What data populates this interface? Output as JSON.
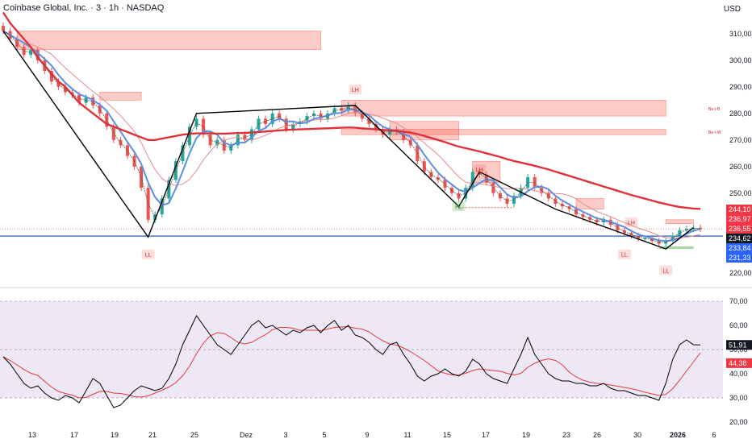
{
  "header": {
    "title": "Coinbase Global, Inc. · 3 · 1h · NASDAQ",
    "currency": "USD"
  },
  "colors": {
    "up": "#26a69a",
    "down": "#ef5350",
    "ema_slow": "#e0303a",
    "ema_mid": "#e58a8e",
    "ema_fast": "#5b8fe0",
    "zigzag": "#000000",
    "support": "#2a5fb0",
    "rsi": "#000000",
    "rsi_ma": "#e23b3b",
    "band_fill": "#ede7f6",
    "green_ema": "#4caf50"
  },
  "chart_data": [
    {
      "type": "candlestick",
      "y_ticks": [
        "310,00",
        "300,00",
        "290,00",
        "280,00",
        "270,00",
        "260,00",
        "250,00",
        "240,00",
        "220,00"
      ],
      "ylim": [
        216,
        316
      ],
      "x_ticks": [
        "13",
        "17",
        "19",
        "21",
        "25",
        "Dez",
        "3",
        "5",
        "9",
        "11",
        "15",
        "17",
        "19",
        "23",
        "26",
        "30",
        "2026",
        "6"
      ],
      "price_labels": [
        {
          "text": "244,10",
          "kind": "red"
        },
        {
          "text": "236,97",
          "kind": "red"
        },
        {
          "text": "236,55",
          "kind": "red"
        },
        {
          "text": "234,62",
          "kind": "black"
        },
        {
          "text": "233,84",
          "kind": "blue"
        },
        {
          "text": "231,33",
          "kind": "blue"
        }
      ],
      "swing_labels": [
        {
          "text": "LL",
          "t": 21,
          "price": 227,
          "kind": "red"
        },
        {
          "text": "LH",
          "t": 51,
          "price": 289,
          "kind": "red"
        },
        {
          "text": "HL",
          "t": 66,
          "price": 245,
          "kind": "green"
        },
        {
          "text": "LH",
          "t": 69,
          "price": 259,
          "kind": "red"
        },
        {
          "text": "LH",
          "t": 91,
          "price": 239,
          "kind": "red"
        },
        {
          "text": "LL",
          "t": 90,
          "price": 227,
          "kind": "red"
        },
        {
          "text": "LL",
          "t": 96,
          "price": 221,
          "kind": "red"
        }
      ],
      "zone_labels": [
        "Be-I-B",
        "Be-I-W"
      ],
      "close": [
        311,
        308,
        305,
        302,
        304,
        300,
        296,
        292,
        290,
        288,
        287,
        284,
        286,
        283,
        280,
        275,
        270,
        268,
        264,
        260,
        252,
        240,
        242,
        248,
        255,
        262,
        268,
        275,
        278,
        272,
        268,
        270,
        266,
        268,
        272,
        270,
        274,
        278,
        276,
        280,
        278,
        274,
        276,
        277,
        279,
        280,
        278,
        280,
        282,
        281,
        283,
        280,
        278,
        276,
        274,
        272,
        274,
        273,
        270,
        268,
        262,
        258,
        256,
        255,
        252,
        250,
        248,
        252,
        258,
        257,
        254,
        250,
        248,
        246,
        249,
        252,
        256,
        252,
        250,
        248,
        246,
        245,
        244,
        242,
        241,
        240,
        239,
        240,
        238,
        236,
        235,
        234,
        233,
        233,
        232,
        231,
        232,
        234,
        236,
        236.5,
        237,
        236.5
      ],
      "support_level": 236.55,
      "ema_slow": [
        318,
        314,
        311,
        308,
        305,
        301,
        298,
        295,
        292,
        290,
        287,
        284,
        282,
        280,
        278,
        276,
        275,
        274,
        273,
        272,
        271,
        270,
        270,
        270.5,
        271,
        271.5,
        272,
        272.3,
        272.5,
        272.5,
        272.5,
        272.4,
        272.4,
        272.5,
        272.6,
        272.7,
        272.8,
        273,
        273.2,
        273.4,
        273.6,
        273.8,
        273.9,
        274,
        274.1,
        274.2,
        274.3,
        274.4,
        274.5,
        274.6,
        274.7,
        274.6,
        274.4,
        274.2,
        274,
        273.8,
        273.6,
        273.4,
        273.1,
        272.8,
        272.2,
        271.5,
        270.8,
        270,
        269.2,
        268.3,
        267.5,
        266.9,
        266.3,
        265.7,
        265,
        264.3,
        263.6,
        262.8,
        262.1,
        261.5,
        260.9,
        260.3,
        259.6,
        258.9,
        258.1,
        257.3,
        256.5,
        255.7,
        254.9,
        254.1,
        253.3,
        252.5,
        251.7,
        250.9,
        250.1,
        249.3,
        248.6,
        247.9,
        247.2,
        246.5,
        245.9,
        245.3,
        244.8,
        244.5,
        244.2,
        244.1
      ],
      "rsi": [
        47,
        44,
        40,
        36,
        34,
        35,
        32,
        30,
        29,
        31,
        30,
        28,
        33,
        38,
        36,
        31,
        26,
        27,
        30,
        33,
        35,
        34,
        33,
        34,
        38,
        44,
        52,
        58,
        64,
        60,
        56,
        52,
        50,
        48,
        52,
        56,
        60,
        62,
        59,
        60,
        58,
        56,
        58,
        57,
        59,
        60,
        57,
        60,
        62,
        58,
        60,
        56,
        55,
        53,
        50,
        48,
        52,
        53,
        48,
        44,
        39,
        37,
        39,
        40,
        42,
        40,
        39,
        41,
        46,
        44,
        40,
        38,
        37,
        36,
        42,
        48,
        55,
        48,
        44,
        40,
        38,
        37,
        37,
        36,
        36,
        35,
        35,
        36,
        34,
        33,
        33,
        32,
        31,
        31,
        30,
        29,
        36,
        46,
        52,
        54,
        52,
        51.91
      ],
      "rsi_ylim": [
        18,
        74
      ],
      "rsi_ticks": [
        "70,00",
        "60,00",
        "50,00",
        "40,00",
        "30,00",
        "20,00"
      ],
      "rsi_labels": [
        {
          "text": "51,91",
          "kind": "black"
        },
        {
          "text": "44,38",
          "kind": "red"
        }
      ]
    }
  ]
}
